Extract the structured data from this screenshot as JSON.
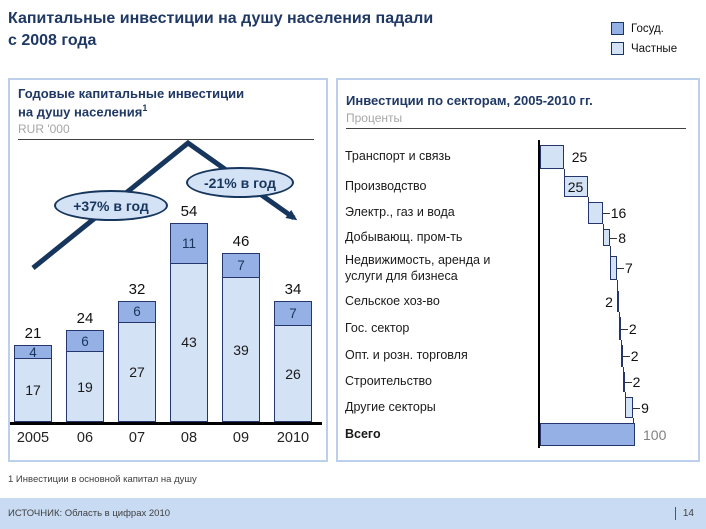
{
  "slide": {
    "title_line1": "Капитальные инвестиции на душу населения падали",
    "title_line2": "с 2008 года",
    "footnote": "1 Инвестиции в основной капитал на душу",
    "source": "ИСТОЧНИК: Область в цифрах 2010",
    "page_number": "14"
  },
  "legend": {
    "items": [
      {
        "label": "Госуд.",
        "color": "#95b0e4"
      },
      {
        "label": "Частные",
        "color": "#d4e2f6"
      }
    ]
  },
  "colors": {
    "state_blue": "#95b0e4",
    "private_blue": "#d4e2f6",
    "navy": "#17365d",
    "panel_border": "#bcd0ee",
    "footer_strip": "#c8dbf3"
  },
  "chart_data": [
    {
      "type": "bar",
      "subtype": "stacked-column-waterfall-trend",
      "title": "Годовые капитальные инвестиции на душу населения",
      "title_superscript": "1",
      "unit_label": "RUR '000",
      "categories": [
        "2005",
        "06",
        "07",
        "08",
        "09",
        "2010"
      ],
      "series": [
        {
          "name": "Госуд.",
          "values": [
            4,
            6,
            6,
            11,
            7,
            7
          ],
          "color": "#95b0e4"
        },
        {
          "name": "Частные",
          "values": [
            17,
            19,
            27,
            43,
            39,
            26
          ],
          "color": "#d4e2f6"
        }
      ],
      "totals": [
        21,
        24,
        32,
        54,
        46,
        34
      ],
      "annotations": [
        {
          "text": "+37% в год",
          "applies_to": "2005-2008"
        },
        {
          "text": "-21% в год",
          "applies_to": "2008-2010"
        }
      ],
      "trend": "rises to peak above 2008 then falls through 2010",
      "ylim": [
        0,
        54
      ],
      "grid": false
    },
    {
      "type": "bar",
      "subtype": "horizontal-waterfall",
      "title": "Инвестиции по секторам, 2005-2010 гг.",
      "unit_label": "Проценты",
      "xlim": [
        0,
        100
      ],
      "rows": [
        {
          "label": "Транспорт и связь",
          "value": 25
        },
        {
          "label": "Производство",
          "value": 25,
          "label_inside": true
        },
        {
          "label": "Электр., газ и вода",
          "value": 16,
          "leader": true
        },
        {
          "label": "Добывающ. пром-ть",
          "value": 8,
          "leader": true
        },
        {
          "label": "Недвижимость, аренда и услуги для бизнеса",
          "value": 7,
          "leader": true
        },
        {
          "label": "Сельское хоз-во",
          "value": 2,
          "label_left": true
        },
        {
          "label": "Гос. сектор",
          "value": 2,
          "leader": true
        },
        {
          "label": "Опт. и розн. торговля",
          "value": 2,
          "leader": true
        },
        {
          "label": "Строительство",
          "value": 2,
          "leader": true
        },
        {
          "label": "Другие секторы",
          "value": 9,
          "leader": true
        },
        {
          "label": "Всего",
          "value": 100,
          "is_total": true
        }
      ]
    }
  ]
}
